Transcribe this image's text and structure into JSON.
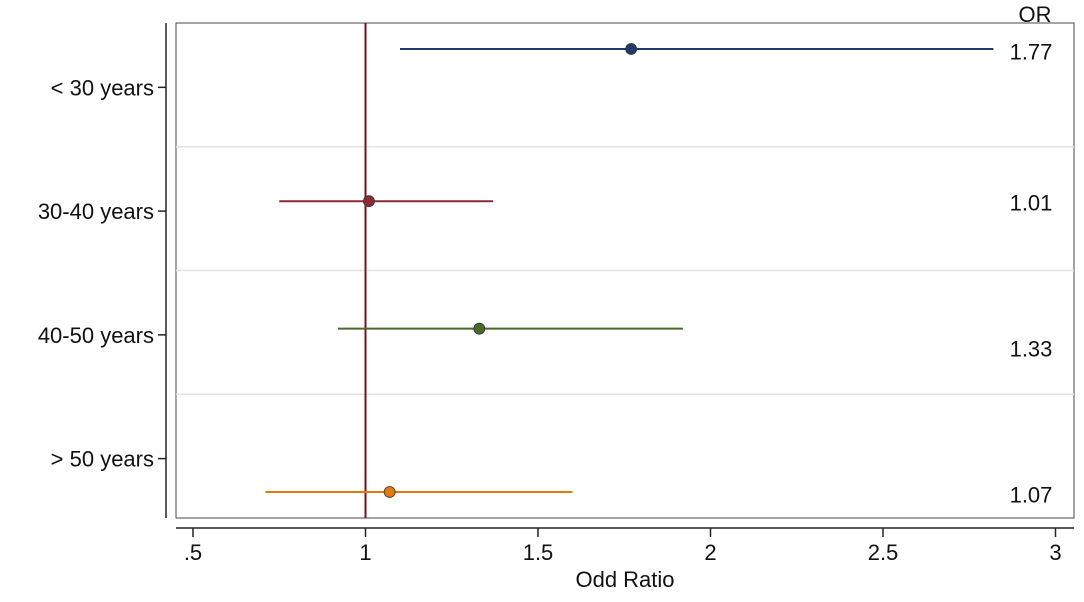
{
  "chart_data": {
    "type": "scatter",
    "subtype": "forest-plot",
    "xlabel": "Odd Ratio",
    "xlim": [
      0.45,
      3.05
    ],
    "x_ticks": [
      0.5,
      1,
      1.5,
      2,
      2.5,
      3
    ],
    "x_tick_labels": [
      ".5",
      "1",
      "1.5",
      "2",
      "2.5",
      "3"
    ],
    "reference_line": 1,
    "reference_line_color": "#7a1020",
    "grid": "horizontal separators between groups",
    "right_column_header": "OR",
    "series": [
      {
        "category": "< 30 years",
        "or": 1.77,
        "or_label": "1.77",
        "ci_low": 1.1,
        "ci_high": 2.82,
        "color": "#1f3a6b"
      },
      {
        "category": "30-40 years",
        "or": 1.01,
        "or_label": "1.01",
        "ci_low": 0.75,
        "ci_high": 1.37,
        "color": "#8b2b35"
      },
      {
        "category": "40-50 years",
        "or": 1.33,
        "or_label": "1.33",
        "ci_low": 0.92,
        "ci_high": 1.92,
        "color": "#4a6a2a"
      },
      {
        "category": "> 50 years",
        "or": 1.07,
        "or_label": "1.07",
        "ci_low": 0.71,
        "ci_high": 1.6,
        "color": "#e07b0c"
      }
    ]
  }
}
